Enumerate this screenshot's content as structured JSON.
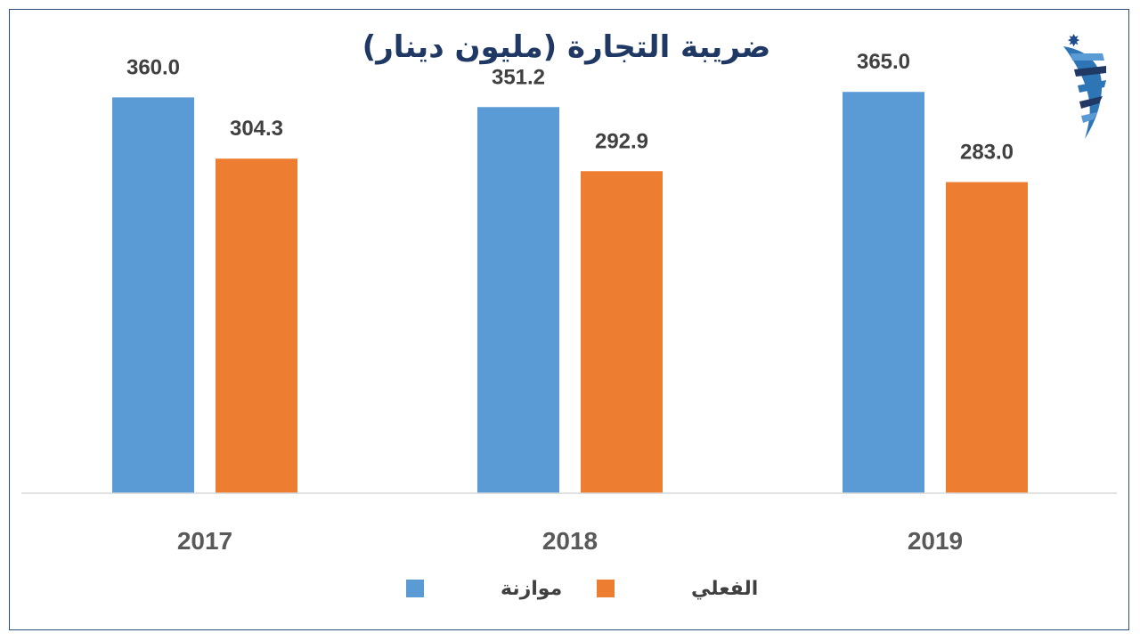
{
  "chart_data": {
    "type": "bar",
    "title": "ضريبة التجارة (مليون دينار)",
    "categories": [
      "2017",
      "2018",
      "2019"
    ],
    "series": [
      {
        "name": "موازنة",
        "color": "#5b9bd5",
        "values": [
          360.0,
          351.2,
          365.0
        ],
        "labels": [
          "360.0",
          "351.2",
          "365.0"
        ]
      },
      {
        "name": "الفعلي",
        "color": "#ed7d31",
        "values": [
          304.3,
          292.9,
          283.0
        ],
        "labels": [
          "304.3",
          "292.9",
          "283.0"
        ]
      }
    ],
    "ylim": [
      0,
      400
    ],
    "grid": false,
    "legend_position": "bottom"
  },
  "logo": {
    "icon": "jordan-star-logo-icon",
    "colors": [
      "#2e75b6",
      "#1f3864"
    ]
  }
}
